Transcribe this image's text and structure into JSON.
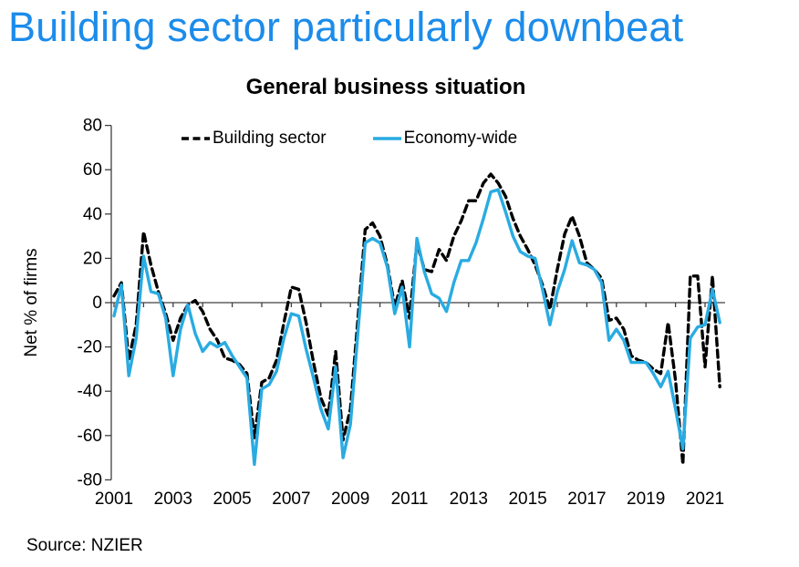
{
  "slide": {
    "title": "Building sector particularly downbeat",
    "title_color": "#1b8ceb"
  },
  "chart": {
    "title": "General business situation",
    "legend": [
      {
        "label": "Building sector",
        "style": "dashed",
        "color": "#000000"
      },
      {
        "label": "Economy-wide",
        "style": "solid",
        "color": "#29abe2"
      }
    ],
    "y_axis": {
      "label": "Net % of firms",
      "ticks": [
        80,
        60,
        40,
        20,
        0,
        -20,
        -40,
        -60,
        -80
      ]
    },
    "x_axis": {
      "tick_labels": [
        "2001",
        "2003",
        "2005",
        "2007",
        "2009",
        "2011",
        "2013",
        "2015",
        "2017",
        "2019",
        "2021"
      ]
    }
  },
  "source": "Source: NZIER",
  "chart_data": {
    "type": "line",
    "title": "General business situation",
    "xlabel": "",
    "ylabel": "Net % of firms",
    "ylim": [
      -80,
      80
    ],
    "xlim": [
      2001.0,
      2021.75
    ],
    "grid": false,
    "legend_position": "top",
    "x_unit": "quarterly decimal years",
    "x": [
      2001.0,
      2001.25,
      2001.5,
      2001.75,
      2002.0,
      2002.25,
      2002.5,
      2002.75,
      2003.0,
      2003.25,
      2003.5,
      2003.75,
      2004.0,
      2004.25,
      2004.5,
      2004.75,
      2005.0,
      2005.25,
      2005.5,
      2005.75,
      2006.0,
      2006.25,
      2006.5,
      2006.75,
      2007.0,
      2007.25,
      2007.5,
      2007.75,
      2008.0,
      2008.25,
      2008.5,
      2008.75,
      2009.0,
      2009.25,
      2009.5,
      2009.75,
      2010.0,
      2010.25,
      2010.5,
      2010.75,
      2011.0,
      2011.25,
      2011.5,
      2011.75,
      2012.0,
      2012.25,
      2012.5,
      2012.75,
      2013.0,
      2013.25,
      2013.5,
      2013.75,
      2014.0,
      2014.25,
      2014.5,
      2014.75,
      2015.0,
      2015.25,
      2015.5,
      2015.75,
      2016.0,
      2016.25,
      2016.5,
      2016.75,
      2017.0,
      2017.25,
      2017.5,
      2017.75,
      2018.0,
      2018.25,
      2018.5,
      2018.75,
      2019.0,
      2019.25,
      2019.5,
      2019.75,
      2020.0,
      2020.25,
      2020.5,
      2020.75,
      2021.0,
      2021.25,
      2021.5
    ],
    "series": [
      {
        "name": "Building sector",
        "color": "#000000",
        "dash": true,
        "values": [
          3,
          9,
          -26,
          -10,
          32,
          17,
          5,
          -5,
          -17,
          -7,
          -1,
          1,
          -4,
          -12,
          -17,
          -25,
          -26,
          -28,
          -32,
          -61,
          -36,
          -34,
          -26,
          -9,
          7,
          6,
          -9,
          -27,
          -43,
          -51,
          -22,
          -62,
          -48,
          -8,
          33,
          36,
          30,
          17,
          -2,
          10,
          -7,
          27,
          15,
          14,
          24,
          19,
          30,
          37,
          46,
          46,
          54,
          58,
          54,
          48,
          38,
          30,
          24,
          17,
          8,
          -3,
          15,
          31,
          39,
          30,
          18,
          15,
          11,
          -8,
          -7,
          -12,
          -24,
          -26,
          -27,
          -30,
          -32,
          -9,
          -35,
          -73,
          12,
          12,
          -29,
          12,
          -38
        ]
      },
      {
        "name": "Economy-wide",
        "color": "#29abe2",
        "dash": false,
        "values": [
          -6,
          8,
          -33,
          -16,
          21,
          5,
          4,
          -7,
          -33,
          -12,
          -1,
          -14,
          -22,
          -18,
          -20,
          -18,
          -24,
          -29,
          -34,
          -73,
          -39,
          -37,
          -31,
          -16,
          -5,
          -6,
          -21,
          -34,
          -48,
          -57,
          -29,
          -70,
          -55,
          -14,
          27,
          29,
          27,
          16,
          -5,
          7,
          -20,
          29,
          14,
          4,
          2,
          -4,
          9,
          19,
          19,
          27,
          38,
          50,
          51,
          41,
          30,
          23,
          21,
          20,
          6,
          -10,
          5,
          15,
          28,
          18,
          17,
          15,
          9,
          -17,
          -12,
          -17,
          -27,
          -27,
          -27,
          -32,
          -38,
          -31,
          -48,
          -66,
          -16,
          -11,
          -10,
          6,
          -9
        ]
      }
    ]
  }
}
